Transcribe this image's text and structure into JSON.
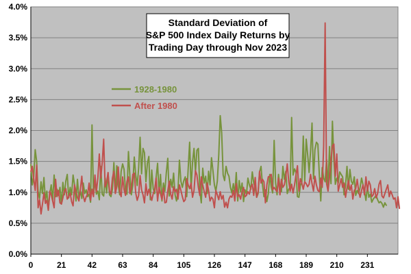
{
  "chart_data": {
    "type": "line",
    "title": [
      "Standard Deviation of",
      "S&P 500 Index Daily Returns by",
      "Trading Day through Nov 2023"
    ],
    "xlabel": "",
    "ylabel": "",
    "xlim": [
      0,
      252
    ],
    "ylim": [
      0,
      0.04
    ],
    "x_ticks": [
      0,
      21,
      42,
      63,
      84,
      105,
      126,
      147,
      168,
      189,
      210,
      231
    ],
    "x_tick_labels": [
      "0",
      "21",
      "42",
      "63",
      "84",
      "105",
      "126",
      "147",
      "168",
      "189",
      "210",
      "231"
    ],
    "y_ticks": [
      0,
      0.005,
      0.01,
      0.015,
      0.02,
      0.025,
      0.03,
      0.035,
      0.04
    ],
    "y_tick_labels": [
      "0.0%",
      "0.5%",
      "1.0%",
      "1.5%",
      "2.0%",
      "2.5%",
      "3.0%",
      "3.5%",
      "4.0%"
    ],
    "grid": true,
    "legend_placement": "upper-left",
    "plot_background": "#c0c0c0",
    "series": [
      {
        "name": "1928-1980",
        "color": "#77933c",
        "values": [
          0.0145,
          0.0112,
          0.0125,
          0.0169,
          0.015,
          0.0101,
          0.009,
          0.0117,
          0.0098,
          0.0124,
          0.0087,
          0.0102,
          0.0071,
          0.0098,
          0.0112,
          0.0087,
          0.0128,
          0.0093,
          0.0105,
          0.0095,
          0.0108,
          0.0081,
          0.0116,
          0.0096,
          0.0118,
          0.0129,
          0.0091,
          0.0108,
          0.0096,
          0.0128,
          0.0112,
          0.0086,
          0.0121,
          0.0091,
          0.0102,
          0.009,
          0.0115,
          0.0098,
          0.0104,
          0.0093,
          0.0097,
          0.0084,
          0.0209,
          0.0095,
          0.0119,
          0.0097,
          0.0102,
          0.0088,
          0.0142,
          0.0097,
          0.0094,
          0.0123,
          0.0099,
          0.0131,
          0.0096,
          0.0093,
          0.0105,
          0.0148,
          0.0099,
          0.0143,
          0.0112,
          0.0096,
          0.0134,
          0.0146,
          0.0137,
          0.0102,
          0.0097,
          0.0166,
          0.0126,
          0.0096,
          0.0112,
          0.0157,
          0.0128,
          0.0111,
          0.0139,
          0.0189,
          0.013,
          0.0171,
          0.0164,
          0.0117,
          0.0147,
          0.0158,
          0.0088,
          0.0136,
          0.0106,
          0.0098,
          0.0124,
          0.0147,
          0.0099,
          0.0129,
          0.0086,
          0.0115,
          0.0102,
          0.0132,
          0.0155,
          0.0094,
          0.0121,
          0.0108,
          0.0131,
          0.0096,
          0.0086,
          0.0102,
          0.0152,
          0.0118,
          0.0108,
          0.0119,
          0.0125,
          0.0093,
          0.0138,
          0.0181,
          0.0106,
          0.0149,
          0.0171,
          0.0133,
          0.0168,
          0.0171,
          0.0102,
          0.0083,
          0.0139,
          0.0115,
          0.0126,
          0.0098,
          0.0134,
          0.0112,
          0.0156,
          0.0135,
          0.0112,
          0.0102,
          0.0118,
          0.0161,
          0.0224,
          0.0196,
          0.0128,
          0.0119,
          0.0142,
          0.0131,
          0.0126,
          0.0108,
          0.0099,
          0.0114,
          0.0098,
          0.0132,
          0.0086,
          0.0119,
          0.0101,
          0.0115,
          0.0085,
          0.0104,
          0.0097,
          0.0123,
          0.0112,
          0.0105,
          0.0133,
          0.0115,
          0.0107,
          0.0092,
          0.0098,
          0.0133,
          0.0142,
          0.0112,
          0.0093,
          0.0104,
          0.0085,
          0.0098,
          0.0129,
          0.0109,
          0.0099,
          0.0184,
          0.0115,
          0.0096,
          0.0129,
          0.0107,
          0.0101,
          0.0142,
          0.0121,
          0.0134,
          0.0098,
          0.0105,
          0.0108,
          0.0221,
          0.0128,
          0.0138,
          0.0132,
          0.0093,
          0.0092,
          0.0111,
          0.0116,
          0.0191,
          0.0118,
          0.0186,
          0.0161,
          0.0132,
          0.0167,
          0.0212,
          0.0122,
          0.0169,
          0.0181,
          0.0178,
          0.0129,
          0.0086,
          0.014,
          0.0123,
          0.0117,
          0.0153,
          0.011,
          0.0174,
          0.0114,
          0.0215,
          0.0153,
          0.0113,
          0.0123,
          0.0115,
          0.0133,
          0.0129,
          0.0125,
          0.0096,
          0.0111,
          0.0142,
          0.0105,
          0.0137,
          0.0118,
          0.0113,
          0.0125,
          0.0095,
          0.0103,
          0.0098,
          0.0108,
          0.0123,
          0.0112,
          0.0102,
          0.0087,
          0.0109,
          0.0092,
          0.0097,
          0.0084,
          0.0089,
          0.0092,
          0.0095,
          0.0088,
          0.0083,
          0.0085,
          0.0082,
          0.0076,
          0.0083,
          0.0079
        ]
      },
      {
        "name": "After 1980",
        "color": "#c0504d",
        "values": [
          0.0134,
          0.0142,
          0.0122,
          0.0103,
          0.0144,
          0.0075,
          0.0088,
          0.0065,
          0.0081,
          0.0099,
          0.0082,
          0.0087,
          0.0071,
          0.0102,
          0.0096,
          0.0086,
          0.0075,
          0.0121,
          0.0093,
          0.0103,
          0.0083,
          0.0081,
          0.0091,
          0.0102,
          0.0106,
          0.0089,
          0.0093,
          0.0099,
          0.0085,
          0.0078,
          0.0112,
          0.0101,
          0.0092,
          0.0086,
          0.0105,
          0.0126,
          0.0094,
          0.0085,
          0.0093,
          0.0097,
          0.0115,
          0.0087,
          0.0105,
          0.0093,
          0.0128,
          0.0101,
          0.0123,
          0.0162,
          0.0123,
          0.0148,
          0.0186,
          0.0109,
          0.0116,
          0.0132,
          0.0102,
          0.0097,
          0.0123,
          0.0134,
          0.0098,
          0.0109,
          0.0141,
          0.0102,
          0.0093,
          0.0125,
          0.0104,
          0.0095,
          0.0118,
          0.0125,
          0.0098,
          0.0106,
          0.0129,
          0.0131,
          0.0099,
          0.0087,
          0.0095,
          0.0127,
          0.0104,
          0.0096,
          0.0083,
          0.0114,
          0.0095,
          0.0105,
          0.0096,
          0.0087,
          0.0098,
          0.0104,
          0.0123,
          0.0086,
          0.0108,
          0.0098,
          0.0088,
          0.0107,
          0.0083,
          0.0084,
          0.0102,
          0.0118,
          0.0097,
          0.0089,
          0.0109,
          0.0101,
          0.0105,
          0.0089,
          0.0112,
          0.0103,
          0.0093,
          0.0085,
          0.0088,
          0.0122,
          0.0112,
          0.0106,
          0.0115,
          0.0092,
          0.0103,
          0.0135,
          0.0128,
          0.0108,
          0.0095,
          0.0125,
          0.0112,
          0.0101,
          0.0092,
          0.0115,
          0.0103,
          0.0086,
          0.0092,
          0.0089,
          0.0075,
          0.0103,
          0.0096,
          0.0088,
          0.0101,
          0.0089,
          0.0095,
          0.0076,
          0.0084,
          0.0075,
          0.0089,
          0.0094,
          0.0092,
          0.0103,
          0.0086,
          0.0114,
          0.0093,
          0.0096,
          0.0089,
          0.0101,
          0.0108,
          0.0093,
          0.0095,
          0.0101,
          0.0097,
          0.0108,
          0.0113,
          0.0095,
          0.0124,
          0.0092,
          0.0101,
          0.0134,
          0.0115,
          0.0121,
          0.0117,
          0.0083,
          0.0112,
          0.0125,
          0.0126,
          0.0129,
          0.0104,
          0.0108,
          0.0104,
          0.0101,
          0.0123,
          0.0096,
          0.0121,
          0.0108,
          0.0112,
          0.0126,
          0.0146,
          0.0118,
          0.0102,
          0.0113,
          0.0099,
          0.0112,
          0.0128,
          0.0143,
          0.0102,
          0.0122,
          0.0115,
          0.0105,
          0.0117,
          0.0114,
          0.0109,
          0.0113,
          0.0129,
          0.0114,
          0.0102,
          0.0126,
          0.0112,
          0.0103,
          0.0101,
          0.0123,
          0.0108,
          0.0175,
          0.0374,
          0.0114,
          0.0102,
          0.0125,
          0.0151,
          0.0175,
          0.0178,
          0.0126,
          0.0162,
          0.0102,
          0.0112,
          0.0122,
          0.0108,
          0.0115,
          0.0092,
          0.0107,
          0.0119,
          0.0103,
          0.0112,
          0.0089,
          0.0103,
          0.0106,
          0.0121,
          0.0102,
          0.0092,
          0.0103,
          0.0112,
          0.0096,
          0.0125,
          0.0102,
          0.0118,
          0.0112,
          0.0093,
          0.0096,
          0.0106,
          0.0091,
          0.0098,
          0.0113,
          0.0119,
          0.0094,
          0.0091,
          0.0098,
          0.0105,
          0.0112,
          0.0093,
          0.0102,
          0.0096,
          0.0089,
          0.0091,
          0.0075,
          0.0093,
          0.0074
        ]
      }
    ]
  }
}
